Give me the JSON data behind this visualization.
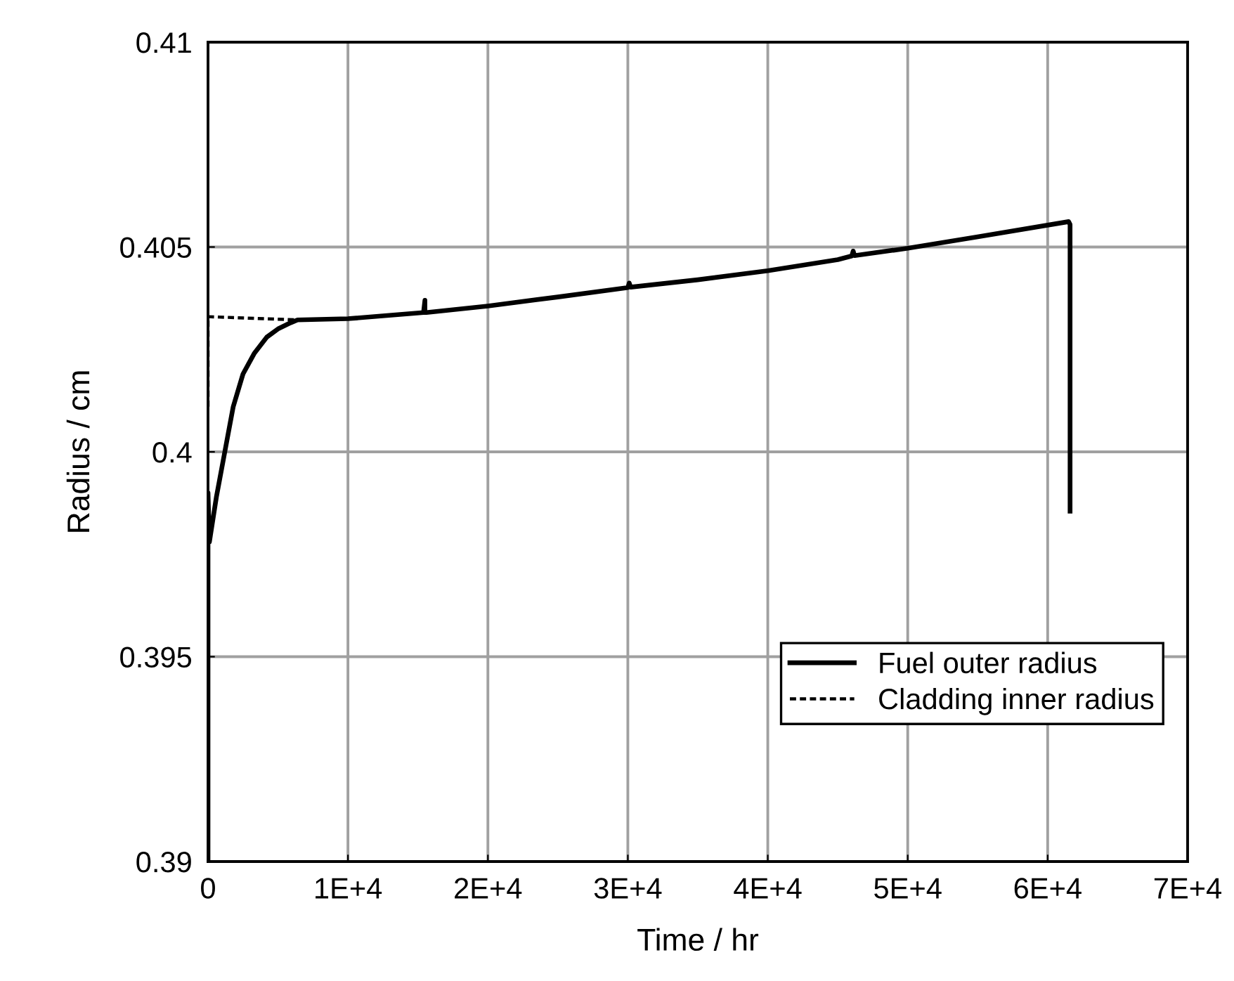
{
  "chart_data": {
    "type": "line",
    "xlabel": "Time / hr",
    "ylabel": "Radius / cm",
    "xlim": [
      0,
      70000
    ],
    "ylim": [
      0.39,
      0.41
    ],
    "xticks": [
      0,
      {
        "value": 10000,
        "label": "1E+4"
      },
      {
        "value": 20000,
        "label": "2E+4"
      },
      {
        "value": 30000,
        "label": "3E+4"
      },
      {
        "value": 40000,
        "label": "4E+4"
      },
      {
        "value": 50000,
        "label": "5E+4"
      },
      {
        "value": 60000,
        "label": "6E+4"
      },
      {
        "value": 70000,
        "label": "7E+4"
      }
    ],
    "yticks": [
      0.39,
      0.395,
      0.4,
      0.405,
      0.41
    ],
    "grid": true,
    "legend": "bottom right",
    "series": [
      {
        "name": "Fuel outer radius",
        "color": "#000000",
        "line_style": "solid",
        "x": [
          0,
          0,
          100,
          600,
          1200,
          1800,
          2500,
          3300,
          4200,
          5000,
          5900,
          6400,
          10000,
          15400,
          15500,
          15500,
          15600,
          20000,
          25000,
          30000,
          30100,
          30200,
          35000,
          40000,
          45000,
          46000,
          46100,
          46200,
          50000,
          55000,
          61500,
          61600,
          61600
        ],
        "values": [
          0.39,
          0.399,
          0.3978,
          0.3989,
          0.4,
          0.4011,
          0.4019,
          0.4024,
          0.4028,
          0.403,
          0.40315,
          0.40322,
          0.40325,
          0.4034,
          0.4037,
          0.4034,
          0.4034,
          0.40356,
          0.40378,
          0.40401,
          0.40412,
          0.40402,
          0.4042,
          0.40442,
          0.40469,
          0.40478,
          0.4049,
          0.40479,
          0.40497,
          0.40525,
          0.40562,
          0.40555,
          0.39855
        ]
      },
      {
        "name": "Cladding inner radius",
        "color": "#000000",
        "line_style": "dashed",
        "x": [
          0,
          0,
          6400
        ],
        "values": [
          0.4011,
          0.4033,
          0.40322
        ]
      }
    ]
  }
}
